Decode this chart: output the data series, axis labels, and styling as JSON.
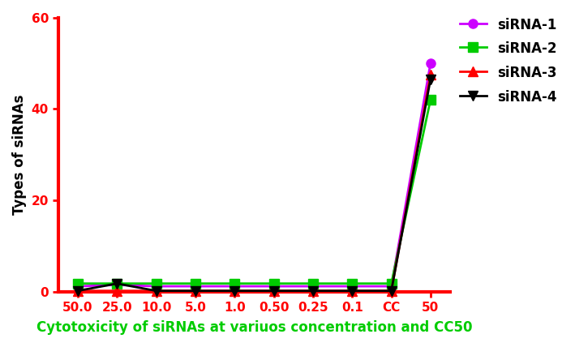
{
  "x_labels": [
    "50.0",
    "25.0",
    "10.0",
    "5.0",
    "1.0",
    "0.50",
    "0.25",
    "0.1",
    "CC",
    "50"
  ],
  "x_positions": [
    0,
    1,
    2,
    3,
    4,
    5,
    6,
    7,
    8,
    9
  ],
  "series": [
    {
      "label": "siRNA-1",
      "color": "#CC00FF",
      "marker": "o",
      "markersize": 8,
      "values": [
        1.2,
        1.5,
        1.2,
        1.2,
        1.2,
        1.2,
        1.2,
        1.2,
        1.2,
        50.0
      ]
    },
    {
      "label": "siRNA-2",
      "color": "#00CC00",
      "marker": "s",
      "markersize": 8,
      "values": [
        1.8,
        1.8,
        1.8,
        1.8,
        1.8,
        1.8,
        1.8,
        1.8,
        1.8,
        42.0
      ]
    },
    {
      "label": "siRNA-3",
      "color": "#FF0000",
      "marker": "^",
      "markersize": 8,
      "values": [
        0.2,
        0.2,
        0.2,
        0.2,
        0.2,
        0.2,
        0.2,
        0.2,
        0.2,
        47.5
      ]
    },
    {
      "label": "siRNA-4",
      "color": "#000000",
      "marker": "v",
      "markersize": 8,
      "values": [
        0.2,
        1.8,
        0.2,
        0.2,
        0.2,
        0.2,
        0.2,
        0.2,
        0.2,
        46.5
      ]
    }
  ],
  "ylabel": "Types of siRNAs",
  "xlabel": "Cytotoxicity of siRNAs at variuos concentration and CC50",
  "xlabel_color": "#00CC00",
  "ylim": [
    0,
    60
  ],
  "yticks": [
    0,
    20,
    40,
    60
  ],
  "spine_color": "#FF0000",
  "spine_linewidth": 3.0,
  "linewidth": 2.0,
  "tick_labelsize": 11,
  "ylabel_fontsize": 12,
  "xlabel_fontsize": 12,
  "legend_fontsize": 12,
  "background_color": "#FFFFFF"
}
